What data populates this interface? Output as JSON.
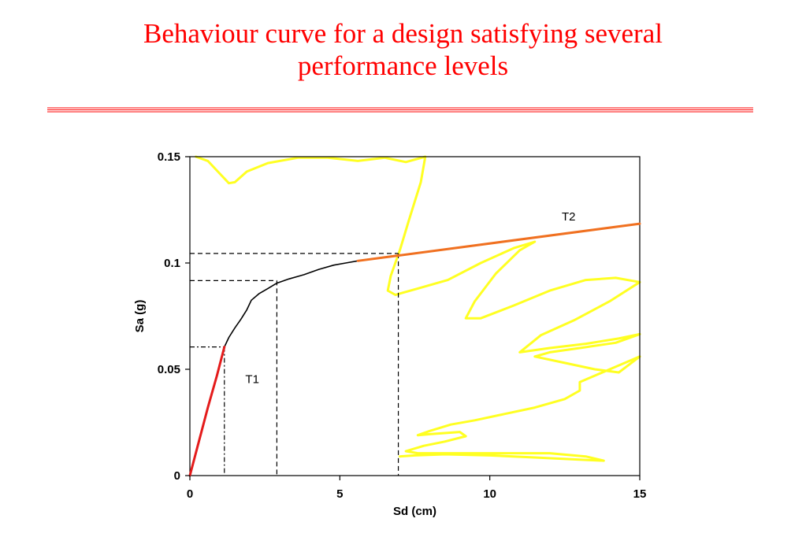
{
  "slide": {
    "title_line1": "Behaviour curve for a design satisfying several",
    "title_line2": "performance levels",
    "title_color": "#ff0000",
    "rule_color": "#ff0000"
  },
  "chart_data": {
    "type": "line",
    "title": "",
    "xlabel": "Sd (cm)",
    "ylabel": "Sa (g)",
    "xlim": [
      0,
      15
    ],
    "ylim": [
      0,
      0.15
    ],
    "x_ticks": [
      0,
      5,
      10,
      15
    ],
    "x_tick_labels": [
      "0",
      "5",
      "10",
      "15"
    ],
    "y_ticks": [
      0,
      0.05,
      0.1,
      0.15
    ],
    "y_tick_labels": [
      "0",
      "0.05",
      "0.1",
      "0.15"
    ],
    "grid": false,
    "colors": {
      "capacity": "#000000",
      "initial_stiffness": "#e41b1b",
      "post_yield": "#f07020",
      "hysteresis": "#ffff22",
      "guide": "#000000"
    },
    "series": [
      {
        "key": "capacity",
        "x": [
          1.15,
          1.3,
          1.5,
          1.7,
          1.9,
          2.05,
          2.3,
          2.6,
          2.9,
          3.3,
          3.8,
          4.3,
          4.8,
          5.2,
          5.6
        ],
        "y": [
          0.0605,
          0.065,
          0.0695,
          0.0735,
          0.078,
          0.0825,
          0.0855,
          0.088,
          0.0905,
          0.0925,
          0.0945,
          0.097,
          0.099,
          0.1,
          0.101
        ]
      },
      {
        "key": "initial_stiffness",
        "x": [
          0,
          0.3,
          0.6,
          0.9,
          1.15
        ],
        "y": [
          0,
          0.016,
          0.032,
          0.047,
          0.0605
        ]
      },
      {
        "key": "post_yield",
        "x": [
          5.6,
          15
        ],
        "y": [
          0.101,
          0.1185
        ]
      },
      {
        "key": "hysteresis",
        "x": [
          0.2,
          0.6,
          1.0,
          1.3,
          1.5,
          1.9,
          2.6,
          3.6,
          4.6,
          5.6,
          6.5,
          7.2,
          7.85,
          7.7,
          7.3,
          7.0,
          6.7,
          6.6,
          6.85,
          7.6,
          8.6,
          9.7,
          10.8,
          11.5,
          11.0,
          10.2,
          9.5,
          9.2,
          9.7,
          10.8,
          12.0,
          13.2,
          14.2,
          15.0,
          14.0,
          12.8,
          11.7,
          11.0,
          12.0,
          13.2,
          14.3,
          15.0,
          14.2,
          13.0,
          12.0,
          11.5,
          12.5,
          13.5,
          14.3,
          15.0,
          14.0,
          13.0,
          13.0,
          12.5,
          11.5,
          10.5,
          9.5,
          8.7,
          8.0,
          7.6,
          8.0,
          9.0,
          9.2,
          8.5,
          7.8,
          7.2,
          7.6,
          9.0,
          10.5,
          12.0,
          13.2,
          13.8,
          13.0,
          11.5,
          10.0,
          8.5,
          7.5,
          7.0
        ],
        "y": [
          0.15,
          0.148,
          0.142,
          0.1375,
          0.138,
          0.143,
          0.147,
          0.1495,
          0.1495,
          0.148,
          0.1495,
          0.1475,
          0.15,
          0.138,
          0.12,
          0.106,
          0.094,
          0.087,
          0.085,
          0.088,
          0.092,
          0.1,
          0.107,
          0.11,
          0.106,
          0.095,
          0.082,
          0.074,
          0.074,
          0.08,
          0.087,
          0.092,
          0.093,
          0.091,
          0.082,
          0.073,
          0.066,
          0.058,
          0.06,
          0.062,
          0.0645,
          0.0665,
          0.0625,
          0.06,
          0.058,
          0.056,
          0.053,
          0.05,
          0.0485,
          0.056,
          0.05,
          0.044,
          0.04,
          0.036,
          0.032,
          0.029,
          0.026,
          0.024,
          0.021,
          0.019,
          0.0195,
          0.0205,
          0.0185,
          0.016,
          0.014,
          0.0115,
          0.0105,
          0.0105,
          0.0105,
          0.0105,
          0.009,
          0.007,
          0.0075,
          0.0085,
          0.0095,
          0.01,
          0.0095,
          0.009
        ]
      }
    ],
    "guides": [
      {
        "x": 1.15,
        "y": 0.0605,
        "dash": "dashdot"
      },
      {
        "x": 2.9,
        "y": 0.0917,
        "dash": "dashed"
      },
      {
        "x": 6.95,
        "y": 0.1045,
        "dash": "dashed"
      }
    ],
    "annotations": [
      {
        "text": "T1",
        "x": 1.85,
        "y": 0.0435
      },
      {
        "text": "T2",
        "x": 12.4,
        "y": 0.12
      }
    ]
  }
}
